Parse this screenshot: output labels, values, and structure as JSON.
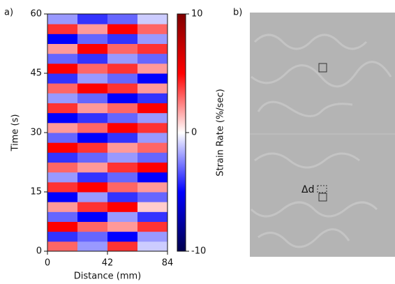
{
  "panels": [
    "a)",
    "b)"
  ],
  "image_annotation": "Δd",
  "chart_data": {
    "type": "heatmap",
    "xlabel": "Distance (mm)",
    "ylabel": "Time (s)",
    "colorbar_label": "Strain Rate (%/sec)",
    "xlim": [
      0,
      84
    ],
    "xticks": [
      0,
      42,
      84
    ],
    "ylim": [
      0,
      60
    ],
    "yticks": [
      0,
      15,
      30,
      45,
      60
    ],
    "clim": [
      -10,
      10
    ],
    "cticks": [
      -10,
      0,
      10
    ],
    "colormap": [
      "#00004c",
      "#0000ff",
      "#ffffff",
      "#ff0000",
      "#800000"
    ],
    "values": [
      [
        3,
        -2,
        4,
        -1
      ],
      [
        -4,
        -3,
        -5,
        -2
      ],
      [
        5,
        3,
        2,
        4
      ],
      [
        -3,
        -5,
        -2,
        -4
      ],
      [
        2,
        4,
        5,
        1
      ],
      [
        -5,
        -2,
        -4,
        -3
      ],
      [
        4,
        5,
        3,
        2
      ],
      [
        -2,
        -4,
        -3,
        -5
      ],
      [
        3,
        2,
        4,
        5
      ],
      [
        -4,
        -3,
        -2,
        -3
      ],
      [
        5,
        4,
        2,
        3
      ],
      [
        -3,
        -5,
        -4,
        -2
      ],
      [
        2,
        3,
        5,
        4
      ],
      [
        -5,
        -4,
        -3,
        -2
      ],
      [
        4,
        2,
        3,
        5
      ],
      [
        -2,
        -3,
        -5,
        -4
      ],
      [
        3,
        5,
        4,
        2
      ],
      [
        -4,
        -2,
        -3,
        -5
      ],
      [
        5,
        3,
        4,
        2
      ],
      [
        -3,
        -4,
        -2,
        -3
      ],
      [
        2,
        5,
        3,
        4
      ],
      [
        -5,
        -3,
        -4,
        -2
      ],
      [
        4,
        2,
        5,
        3
      ],
      [
        -2,
        -4,
        -3,
        -1
      ]
    ]
  }
}
